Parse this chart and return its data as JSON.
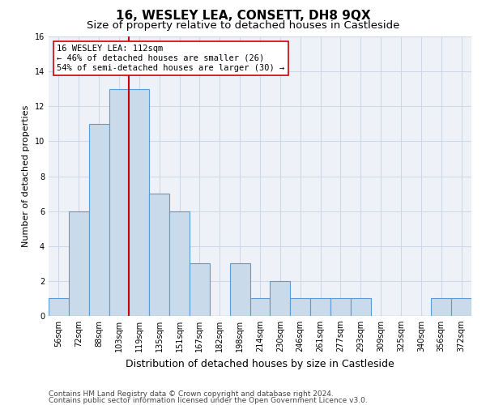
{
  "title": "16, WESLEY LEA, CONSETT, DH8 9QX",
  "subtitle": "Size of property relative to detached houses in Castleside",
  "xlabel": "Distribution of detached houses by size in Castleside",
  "ylabel": "Number of detached properties",
  "categories": [
    "56sqm",
    "72sqm",
    "88sqm",
    "103sqm",
    "119sqm",
    "135sqm",
    "151sqm",
    "167sqm",
    "182sqm",
    "198sqm",
    "214sqm",
    "230sqm",
    "246sqm",
    "261sqm",
    "277sqm",
    "293sqm",
    "309sqm",
    "325sqm",
    "340sqm",
    "356sqm",
    "372sqm"
  ],
  "values": [
    1,
    6,
    11,
    13,
    13,
    7,
    6,
    3,
    0,
    3,
    1,
    2,
    1,
    1,
    1,
    1,
    0,
    0,
    0,
    1,
    1
  ],
  "bar_color": "#c9daea",
  "bar_edge_color": "#5b9bd5",
  "bar_linewidth": 0.8,
  "vline_x": 3.5,
  "vline_color": "#cc0000",
  "ann_line1": "16 WESLEY LEA: 112sqm",
  "ann_line2": "← 46% of detached houses are smaller (26)",
  "ann_line3": "54% of semi-detached houses are larger (30) →",
  "annotation_box_color": "#ffffff",
  "annotation_box_edge": "#cc0000",
  "ylim": [
    0,
    16
  ],
  "yticks": [
    0,
    2,
    4,
    6,
    8,
    10,
    12,
    14,
    16
  ],
  "grid_color": "#d0d8e8",
  "footer1": "Contains HM Land Registry data © Crown copyright and database right 2024.",
  "footer2": "Contains public sector information licensed under the Open Government Licence v3.0.",
  "title_fontsize": 11,
  "subtitle_fontsize": 9.5,
  "xlabel_fontsize": 9,
  "ylabel_fontsize": 8,
  "tick_fontsize": 7,
  "footer_fontsize": 6.5,
  "annotation_fontsize": 7.5
}
